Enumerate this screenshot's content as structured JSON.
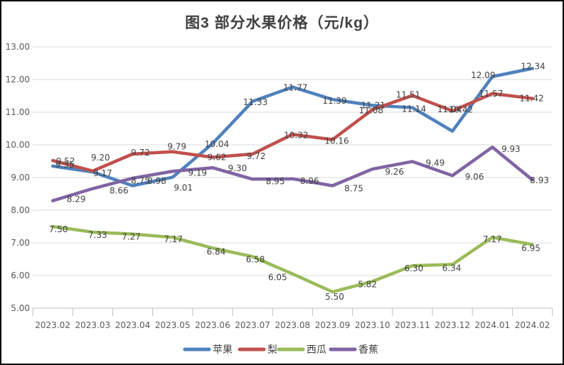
{
  "title": "图3 部分水果价格（元/kg）",
  "colors": {
    "background": "#FFFFFF",
    "border": "#000000",
    "gridline": "#D9D9D9",
    "axis_line": "#BFBFBF",
    "axis_text": "#595959",
    "label_text": "#404040",
    "title_text": "#3F3F3F"
  },
  "chart_data": {
    "type": "line",
    "title": "图3 部分水果价格（元/kg）",
    "xlabel": "",
    "ylabel": "",
    "categories": [
      "2023.02",
      "2023.03",
      "2023.04",
      "2023.05",
      "2023.06",
      "2023.07",
      "2023.08",
      "2023.09",
      "2023.10",
      "2023.11",
      "2023.12",
      "2024.01",
      "2024.02"
    ],
    "series": [
      {
        "name": "苹果",
        "semantic": "apple",
        "color": "#4F81BD",
        "values": [
          9.35,
          9.17,
          8.75,
          9.01,
          10.04,
          11.33,
          11.77,
          11.39,
          11.21,
          11.14,
          10.42,
          12.09,
          12.34
        ]
      },
      {
        "name": "梨",
        "semantic": "pear",
        "color": "#C0504D",
        "values": [
          9.52,
          9.2,
          9.72,
          9.79,
          9.62,
          9.72,
          10.32,
          10.16,
          11.08,
          11.51,
          11.04,
          11.57,
          11.42
        ]
      },
      {
        "name": "西瓜",
        "semantic": "watermelon",
        "color": "#9BBB59",
        "values": [
          7.5,
          7.33,
          7.27,
          7.17,
          6.84,
          6.58,
          6.05,
          5.5,
          5.82,
          6.3,
          6.34,
          7.17,
          6.95
        ]
      },
      {
        "name": "香蕉",
        "semantic": "banana",
        "color": "#8064A2",
        "values": [
          8.29,
          8.66,
          8.98,
          9.19,
          9.3,
          8.95,
          8.96,
          8.75,
          9.26,
          9.49,
          9.06,
          9.93,
          8.93
        ]
      }
    ],
    "ylim": [
      5.0,
      13.0
    ],
    "ytick_interval": 1.0,
    "ytick_labels": [
      "5.00",
      "6.00",
      "7.00",
      "8.00",
      "9.00",
      "10.00",
      "11.00",
      "12.00",
      "13.00"
    ],
    "grid": "horizontal",
    "data_labels": true,
    "decimals": 2,
    "legend_position": "bottom"
  }
}
